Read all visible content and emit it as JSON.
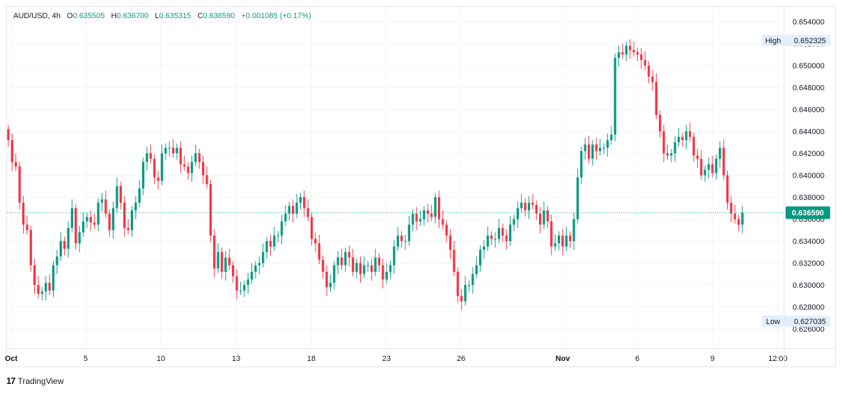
{
  "header": {
    "symbol": "AUD/USD",
    "interval": "4h",
    "open_label": "O",
    "open_value": "0.635505",
    "high_label": "H",
    "high_value": "0.636700",
    "low_label": "L",
    "low_value": "0.635315",
    "close_label": "C",
    "close_value": "0.636590",
    "change": "+0.001085 (+0.17%)"
  },
  "branding": {
    "logo_text": "TradingView",
    "logo_mark": "17"
  },
  "colors": {
    "up": "#089981",
    "down": "#f23645",
    "grid": "#f0f3fa",
    "axis_text": "#131722",
    "last_price_bg": "#089981",
    "marker_bg": "#e3effd"
  },
  "chart_data": {
    "type": "candlestick",
    "symbol": "AUD/USD",
    "interval": "4h",
    "ylim": [
      0.625,
      0.655
    ],
    "y_ticks": [
      "0.654000",
      "0.652000",
      "0.650000",
      "0.648000",
      "0.646000",
      "0.644000",
      "0.642000",
      "0.640000",
      "0.638000",
      "0.636000",
      "0.634000",
      "0.632000",
      "0.630000",
      "0.628000",
      "0.626000"
    ],
    "x_ticks": [
      "Oct",
      "5",
      "10",
      "13",
      "18",
      "23",
      "26",
      "Nov",
      "6",
      "9",
      "12:00"
    ],
    "high_marker": {
      "label": "High",
      "value": "0.652325"
    },
    "low_marker": {
      "label": "Low",
      "value": "0.627035"
    },
    "last_price": {
      "label": "0.636590",
      "value": 0.63659
    },
    "closes": [
      0.6432,
      0.6412,
      0.6408,
      0.6375,
      0.6355,
      0.635,
      0.6318,
      0.63,
      0.6292,
      0.6294,
      0.6302,
      0.6295,
      0.6318,
      0.6326,
      0.634,
      0.6333,
      0.6352,
      0.637,
      0.6338,
      0.6348,
      0.6358,
      0.6362,
      0.6357,
      0.6355,
      0.6375,
      0.6378,
      0.6365,
      0.635,
      0.637,
      0.639,
      0.6375,
      0.6352,
      0.635,
      0.6368,
      0.6375,
      0.6388,
      0.6412,
      0.642,
      0.6415,
      0.6398,
      0.6395,
      0.642,
      0.6425,
      0.6425,
      0.642,
      0.6425,
      0.641,
      0.6408,
      0.6402,
      0.6412,
      0.642,
      0.6412,
      0.64,
      0.6392,
      0.6345,
      0.6315,
      0.633,
      0.6312,
      0.6325,
      0.6318,
      0.6308,
      0.6295,
      0.6295,
      0.63,
      0.6305,
      0.6312,
      0.6318,
      0.632,
      0.633,
      0.634,
      0.6335,
      0.6345,
      0.6345,
      0.6358,
      0.6365,
      0.6372,
      0.6365,
      0.6375,
      0.638,
      0.637,
      0.6362,
      0.6342,
      0.6338,
      0.6323,
      0.6312,
      0.6298,
      0.6302,
      0.6318,
      0.6325,
      0.6318,
      0.633,
      0.6325,
      0.6312,
      0.632,
      0.631,
      0.6318,
      0.6318,
      0.6312,
      0.6325,
      0.6318,
      0.6305,
      0.6312,
      0.6318,
      0.6335,
      0.6345,
      0.634,
      0.634,
      0.6355,
      0.6365,
      0.6358,
      0.636,
      0.6368,
      0.6365,
      0.6362,
      0.638,
      0.636,
      0.6355,
      0.6345,
      0.6332,
      0.6312,
      0.629,
      0.6285,
      0.63,
      0.63,
      0.631,
      0.6318,
      0.6332,
      0.6335,
      0.6345,
      0.6342,
      0.6342,
      0.6352,
      0.6345,
      0.634,
      0.6355,
      0.636,
      0.637,
      0.6375,
      0.6368,
      0.6375,
      0.6373,
      0.6365,
      0.6355,
      0.6368,
      0.6358,
      0.6335,
      0.6338,
      0.6345,
      0.6335,
      0.6345,
      0.634,
      0.636,
      0.6398,
      0.6422,
      0.6428,
      0.6415,
      0.6428,
      0.6422,
      0.6425,
      0.6425,
      0.6432,
      0.6437,
      0.6507,
      0.6512,
      0.651,
      0.6518,
      0.6514,
      0.6512,
      0.651,
      0.6505,
      0.65,
      0.649,
      0.6485,
      0.6455,
      0.644,
      0.642,
      0.6418,
      0.642,
      0.643,
      0.6435,
      0.6432,
      0.644,
      0.6435,
      0.6418,
      0.6415,
      0.64,
      0.6405,
      0.641,
      0.6402,
      0.6415,
      0.6425,
      0.64,
      0.6375,
      0.6365,
      0.636,
      0.6355,
      0.6366
    ]
  }
}
